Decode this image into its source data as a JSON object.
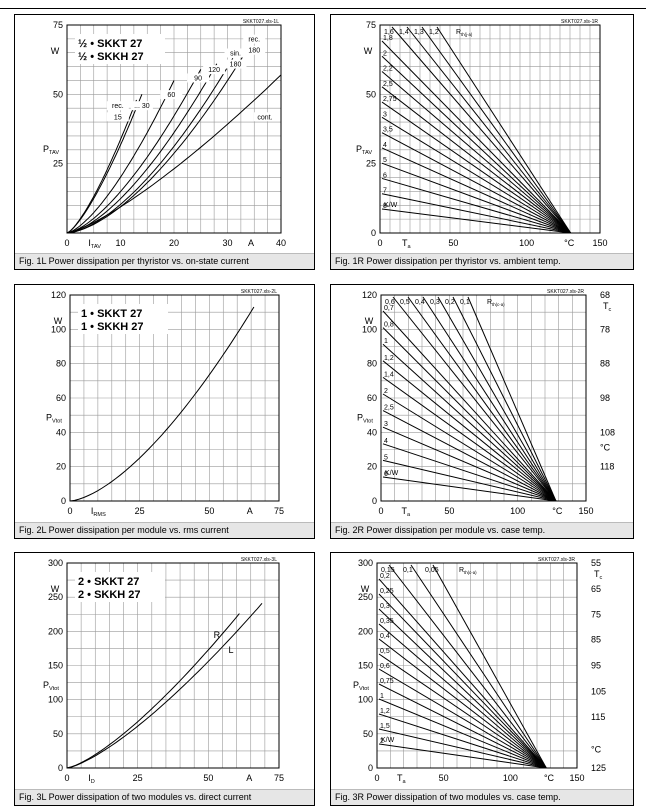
{
  "chart_data": [
    {
      "id": "1L",
      "type": "line",
      "caption": "Fig. 1L Power dissipation per thyristor vs. on-state current",
      "code": "SKKT027.xls-1L",
      "ylabel_main": "P",
      "ylabel_sub": "TAV",
      "yunit": "W",
      "xlabel_main": "I",
      "xlabel_sub": "TAV",
      "xunit": "A",
      "xlim": [
        0,
        40
      ],
      "ylim": [
        0,
        75
      ],
      "xticks": [
        "0",
        "10",
        "20",
        "30",
        "40"
      ],
      "xtick_values": [
        0,
        10,
        20,
        30,
        40
      ],
      "yticks": [
        "25",
        "50",
        "75"
      ],
      "ytick_values": [
        25,
        50,
        75
      ],
      "legend": [
        "½ • SKKT 27",
        "½ • SKKH 27"
      ],
      "series": [
        {
          "name": "rec. 15",
          "x": [
            0,
            13
          ],
          "y": [
            0,
            48
          ]
        },
        {
          "name": "30",
          "x": [
            0,
            14
          ],
          "y": [
            0,
            50
          ]
        },
        {
          "name": "60",
          "x": [
            0,
            20
          ],
          "y": [
            0,
            55
          ]
        },
        {
          "name": "90",
          "x": [
            0,
            25
          ],
          "y": [
            0,
            59
          ]
        },
        {
          "name": "120",
          "x": [
            0,
            28
          ],
          "y": [
            0,
            61
          ]
        },
        {
          "name": "sin. 180",
          "x": [
            0,
            31
          ],
          "y": [
            0,
            63
          ]
        },
        {
          "name": "rec. 180",
          "x": [
            0,
            33
          ],
          "y": [
            0,
            64
          ]
        },
        {
          "name": "cont.",
          "x": [
            0,
            40
          ],
          "y": [
            0,
            57
          ]
        }
      ],
      "labels": [
        {
          "t": "rec.",
          "x": 9.5,
          "y": 45
        },
        {
          "t": "15",
          "x": 9.5,
          "y": 41
        },
        {
          "t": "... 30",
          "x": 14,
          "y": 45
        },
        {
          "t": "60",
          "x": 19.5,
          "y": 49
        },
        {
          "t": "90",
          "x": 24.5,
          "y": 55
        },
        {
          "t": "120",
          "x": 27.5,
          "y": 58
        },
        {
          "t": "sin.",
          "x": 31.5,
          "y": 64
        },
        {
          "t": "180",
          "x": 31.5,
          "y": 60
        },
        {
          "t": "rec.",
          "x": 35,
          "y": 69
        },
        {
          "t": "180",
          "x": 35,
          "y": 65
        },
        {
          "t": "cont.",
          "x": 37,
          "y": 41
        }
      ]
    },
    {
      "id": "1R",
      "type": "line",
      "caption": "Fig. 1R Power dissipation per thyristor vs. ambient temp.",
      "code": "SKKT027.xls-1R",
      "ylabel_main": "P",
      "ylabel_sub": "TAV",
      "yunit": "W",
      "xlabel_main": "T",
      "xlabel_sub": "a",
      "xunit": "°C",
      "xlim": [
        0,
        150
      ],
      "ylim": [
        0,
        75
      ],
      "xticks": [
        "0",
        "50",
        "100",
        "150"
      ],
      "xtick_values": [
        0,
        50,
        100,
        150
      ],
      "yticks": [
        "0",
        "25",
        "50",
        "75"
      ],
      "ytick_values": [
        0,
        25,
        50,
        75
      ],
      "rth_label_main": "R",
      "rth_label_sub": "th(j-a)",
      "rth_unit": "K/W",
      "rth_values": [
        "1,6",
        "1,4",
        "1,3",
        "1,2",
        "1,8",
        "2",
        "2,2",
        "2,5",
        "2,75",
        "3",
        "3,5",
        "4",
        "5",
        "6",
        "7",
        "8"
      ],
      "end": [
        130,
        0
      ]
    },
    {
      "id": "2L",
      "type": "line",
      "caption": "Fig. 2L Power dissipation per module vs. rms current",
      "code": "SKKT027.xls-2L",
      "ylabel_main": "P",
      "ylabel_sub": "Vtot",
      "yunit": "W",
      "xlabel_main": "I",
      "xlabel_sub": "RMS",
      "xunit": "A",
      "xlim": [
        0,
        75
      ],
      "ylim": [
        0,
        120
      ],
      "xticks": [
        "0",
        "25",
        "50",
        "75"
      ],
      "xtick_values": [
        0,
        25,
        50,
        75
      ],
      "yticks": [
        "0",
        "20",
        "40",
        "60",
        "80",
        "100",
        "120"
      ],
      "ytick_values": [
        0,
        20,
        40,
        60,
        80,
        100,
        120
      ],
      "legend": [
        "1 • SKKT 27",
        "1 • SKKH 27"
      ],
      "series": [
        {
          "name": "",
          "x": [
            0,
            66
          ],
          "y": [
            0,
            113
          ]
        }
      ]
    },
    {
      "id": "2R",
      "type": "line",
      "caption": "Fig. 2R Power dissipation per module vs. case temp.",
      "code": "SKKT027.xls-2R",
      "ylabel_main": "P",
      "ylabel_sub": "Vtot",
      "yunit": "W",
      "xlabel_main": "T",
      "xlabel_sub": "a",
      "xunit": "°C",
      "xlim": [
        0,
        150
      ],
      "ylim": [
        0,
        120
      ],
      "xticks": [
        "0",
        "50",
        "100",
        "150"
      ],
      "xtick_values": [
        0,
        50,
        100,
        150
      ],
      "yticks": [
        "0",
        "20",
        "40",
        "60",
        "80",
        "100",
        "120"
      ],
      "ytick_values": [
        0,
        20,
        40,
        60,
        80,
        100,
        120
      ],
      "right_axis_label_main": "T",
      "right_axis_label_sub": "c",
      "right_axis_unit": "°C",
      "right_ticks": [
        "68",
        "78",
        "88",
        "98",
        "108",
        "118"
      ],
      "right_tick_pvalues": [
        120,
        100,
        80,
        60,
        40,
        20
      ],
      "rth_label_main": "R",
      "rth_label_sub": "th(c-a)",
      "rth_unit": "K/W",
      "rth_values": [
        "0,6",
        "0,5",
        "0,4",
        "0,3",
        "0,2",
        "0,1",
        "0,7",
        "0,8",
        "1",
        "1,2",
        "1,4",
        "2",
        "2,5",
        "3",
        "4",
        "5",
        "6"
      ],
      "end": [
        128,
        0
      ]
    },
    {
      "id": "3L",
      "type": "line",
      "caption": "Fig. 3L Power dissipation of two modules vs. direct current",
      "code": "SKKT027.xls-3L",
      "ylabel_main": "P",
      "ylabel_sub": "Vtot",
      "yunit": "W",
      "xlabel_main": "I",
      "xlabel_sub": "D",
      "xunit": "A",
      "xlim": [
        0,
        75
      ],
      "ylim": [
        0,
        300
      ],
      "xticks": [
        "0",
        "25",
        "50",
        "75"
      ],
      "xtick_values": [
        0,
        25,
        50,
        75
      ],
      "yticks": [
        "0",
        "50",
        "100",
        "150",
        "200",
        "250",
        "300"
      ],
      "ytick_values": [
        0,
        50,
        100,
        150,
        200,
        250,
        300
      ],
      "legend": [
        "2 • SKKT 27",
        "2 • SKKH 27"
      ],
      "series": [
        {
          "name": "R",
          "x": [
            0,
            61
          ],
          "y": [
            0,
            226
          ]
        },
        {
          "name": "L",
          "x": [
            0,
            69
          ],
          "y": [
            0,
            241
          ]
        }
      ]
    },
    {
      "id": "3R",
      "type": "line",
      "caption": "Fig. 3R Power dissipation of two modules vs. case temp.",
      "code": "SKKT027.xls-3R",
      "ylabel_main": "P",
      "ylabel_sub": "Vtot",
      "yunit": "W",
      "xlabel_main": "T",
      "xlabel_sub": "a",
      "xunit": "°C",
      "xlim": [
        0,
        150
      ],
      "ylim": [
        0,
        300
      ],
      "xticks": [
        "0",
        "50",
        "100",
        "150"
      ],
      "xtick_values": [
        0,
        50,
        100,
        150
      ],
      "yticks": [
        "0",
        "50",
        "100",
        "150",
        "200",
        "250",
        "300"
      ],
      "ytick_values": [
        0,
        50,
        100,
        150,
        200,
        250,
        300
      ],
      "right_axis_label_main": "T",
      "right_axis_label_sub": "c",
      "right_axis_unit": "°C",
      "right_ticks": [
        "55",
        "65",
        "75",
        "85",
        "95",
        "105",
        "115",
        "125"
      ],
      "right_tick_pvalues": [
        300,
        262,
        225,
        188,
        150,
        112,
        75,
        0
      ],
      "rth_label_main": "R",
      "rth_label_sub": "th(c-a)",
      "rth_unit": "K/W",
      "rth_values": [
        "0,15",
        "0,1",
        "0,05",
        "0,2",
        "0,25",
        "0,3",
        "0,35",
        "0,4",
        "0,5",
        "0,6",
        "0,75",
        "1",
        "1,2",
        "1,5",
        "2"
      ],
      "end": [
        127,
        0
      ]
    }
  ]
}
